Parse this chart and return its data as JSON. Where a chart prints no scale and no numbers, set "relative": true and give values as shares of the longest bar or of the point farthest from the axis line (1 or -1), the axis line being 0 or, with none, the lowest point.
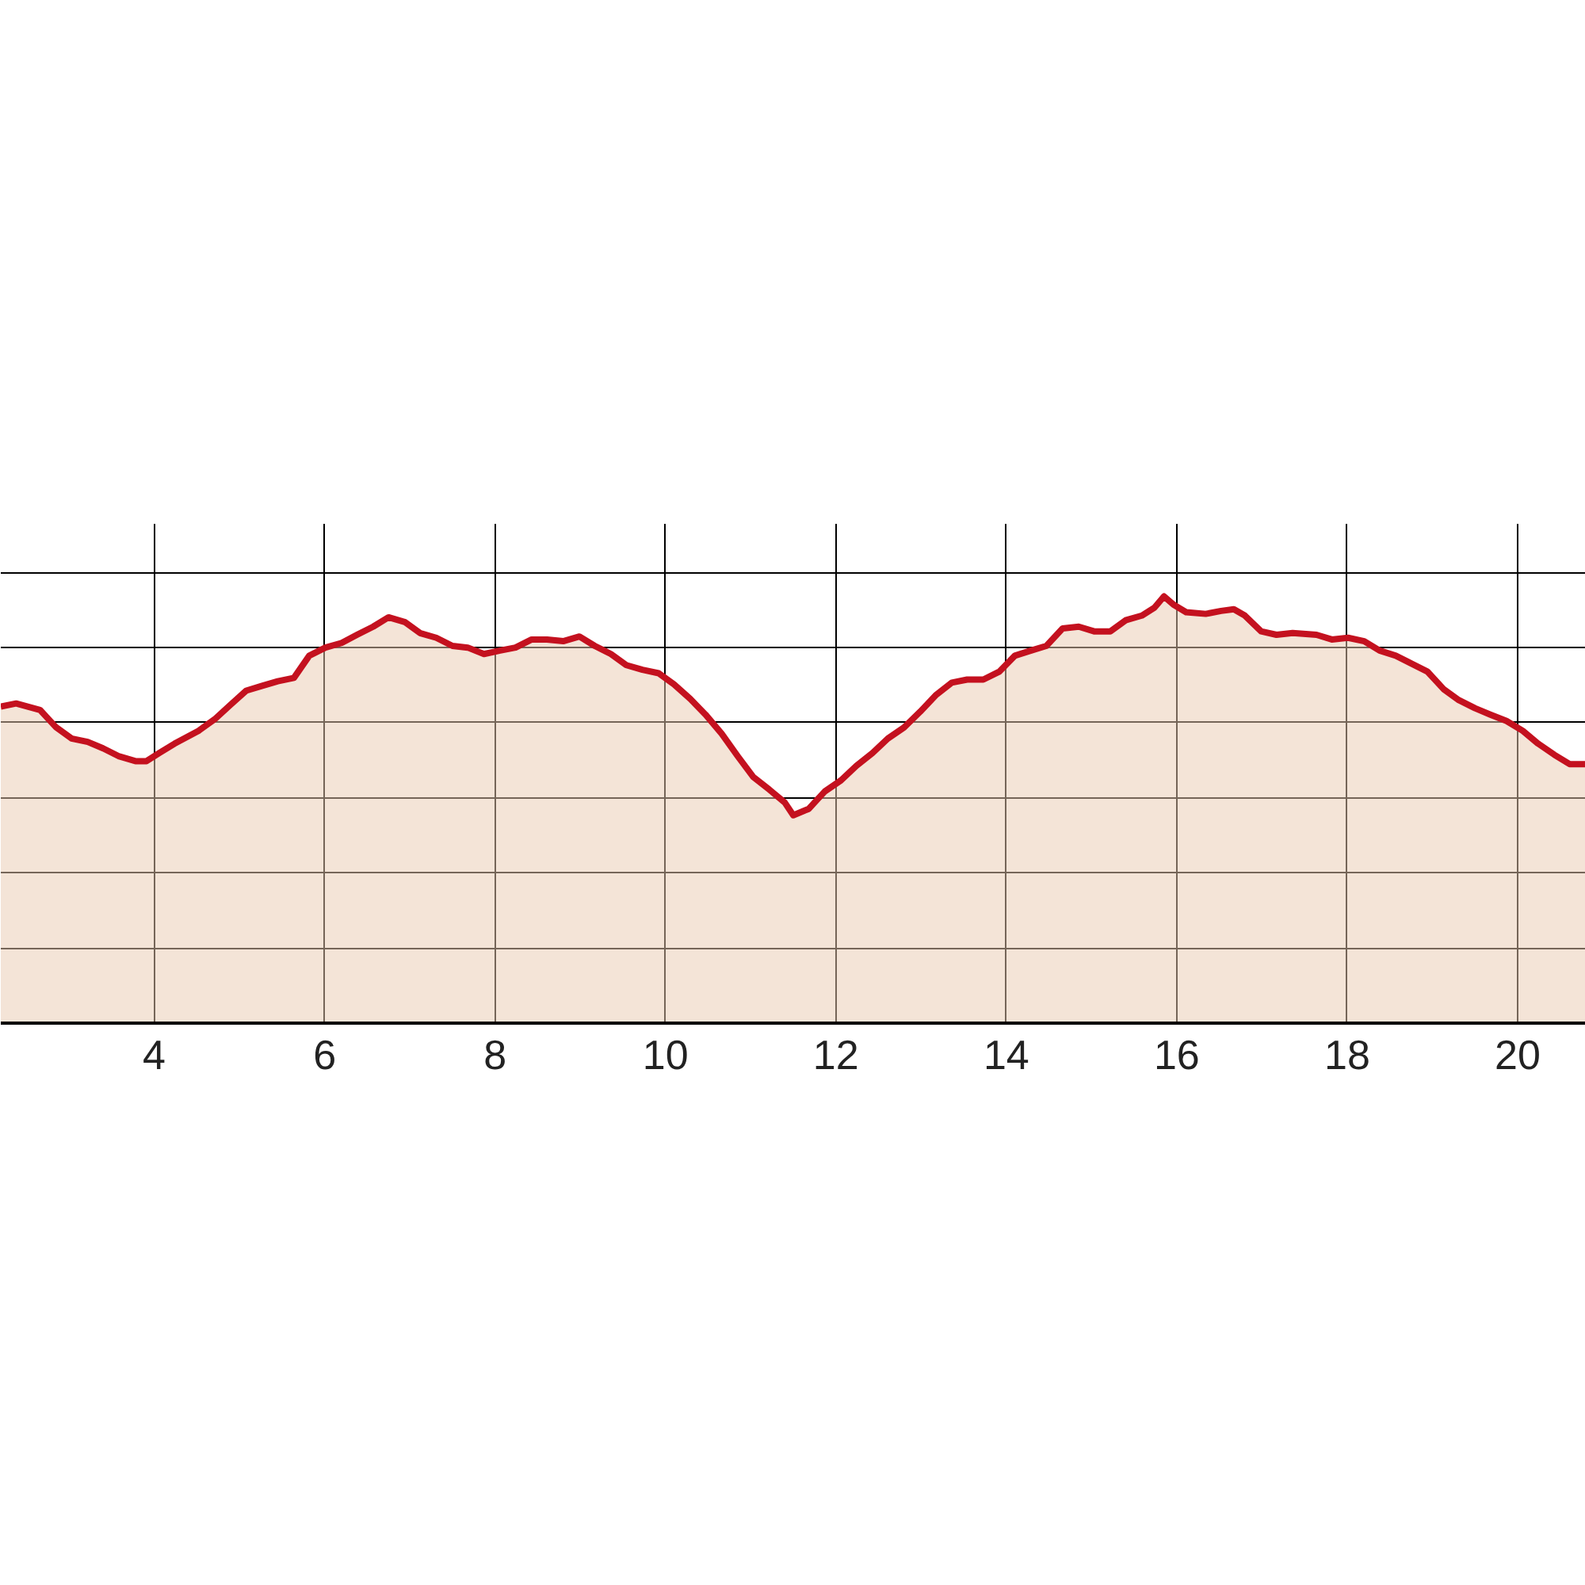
{
  "chart_data": {
    "type": "area",
    "relative": true,
    "grid": true,
    "tick_labels": "x",
    "xlim": [
      2.2,
      20.8
    ],
    "xticks": [
      4,
      6,
      8,
      10,
      12,
      14,
      16,
      18,
      20
    ],
    "series": [
      {
        "color": "#c4111f",
        "x": [
          2.2,
          2.38,
          2.66,
          2.85,
          3.03,
          3.22,
          3.4,
          3.59,
          3.78,
          3.91,
          4.06,
          4.24,
          4.52,
          4.71,
          4.89,
          5.08,
          5.26,
          5.45,
          5.64,
          5.82,
          6.01,
          6.2,
          6.38,
          6.57,
          6.75,
          6.94,
          7.12,
          7.31,
          7.5,
          7.68,
          7.87,
          8.06,
          8.24,
          8.43,
          8.61,
          8.8,
          8.99,
          9.17,
          9.36,
          9.54,
          9.73,
          9.92,
          10.1,
          10.29,
          10.47,
          10.66,
          10.85,
          11.03,
          11.22,
          11.4,
          11.5,
          11.68,
          11.87,
          12.06,
          12.24,
          12.43,
          12.61,
          12.8,
          12.99,
          13.17,
          13.36,
          13.54,
          13.73,
          13.92,
          14.1,
          14.29,
          14.47,
          14.66,
          14.85,
          15.03,
          15.22,
          15.4,
          15.59,
          15.74,
          15.85,
          15.96,
          16.11,
          16.34,
          16.52,
          16.67,
          16.8,
          16.99,
          17.17,
          17.36,
          17.64,
          17.82,
          18.01,
          18.2,
          18.38,
          18.57,
          18.75,
          18.94,
          19.13,
          19.31,
          19.5,
          19.68,
          19.87,
          20.06,
          20.24,
          20.43,
          20.61,
          20.8
        ],
        "values": [
          0.742,
          0.749,
          0.734,
          0.693,
          0.667,
          0.659,
          0.644,
          0.625,
          0.614,
          0.614,
          0.633,
          0.655,
          0.685,
          0.712,
          0.745,
          0.779,
          0.79,
          0.801,
          0.809,
          0.861,
          0.88,
          0.891,
          0.91,
          0.929,
          0.951,
          0.94,
          0.914,
          0.903,
          0.884,
          0.88,
          0.865,
          0.873,
          0.88,
          0.899,
          0.899,
          0.895,
          0.906,
          0.884,
          0.865,
          0.839,
          0.828,
          0.82,
          0.794,
          0.76,
          0.723,
          0.678,
          0.625,
          0.577,
          0.547,
          0.517,
          0.487,
          0.502,
          0.543,
          0.569,
          0.603,
          0.633,
          0.667,
          0.693,
          0.73,
          0.768,
          0.798,
          0.805,
          0.805,
          0.824,
          0.861,
          0.873,
          0.884,
          0.925,
          0.929,
          0.918,
          0.918,
          0.944,
          0.955,
          0.974,
          1.0,
          0.981,
          0.963,
          0.959,
          0.966,
          0.97,
          0.955,
          0.918,
          0.91,
          0.914,
          0.91,
          0.899,
          0.903,
          0.895,
          0.873,
          0.861,
          0.843,
          0.824,
          0.783,
          0.757,
          0.738,
          0.723,
          0.708,
          0.685,
          0.655,
          0.629,
          0.607,
          0.607
        ]
      }
    ]
  }
}
